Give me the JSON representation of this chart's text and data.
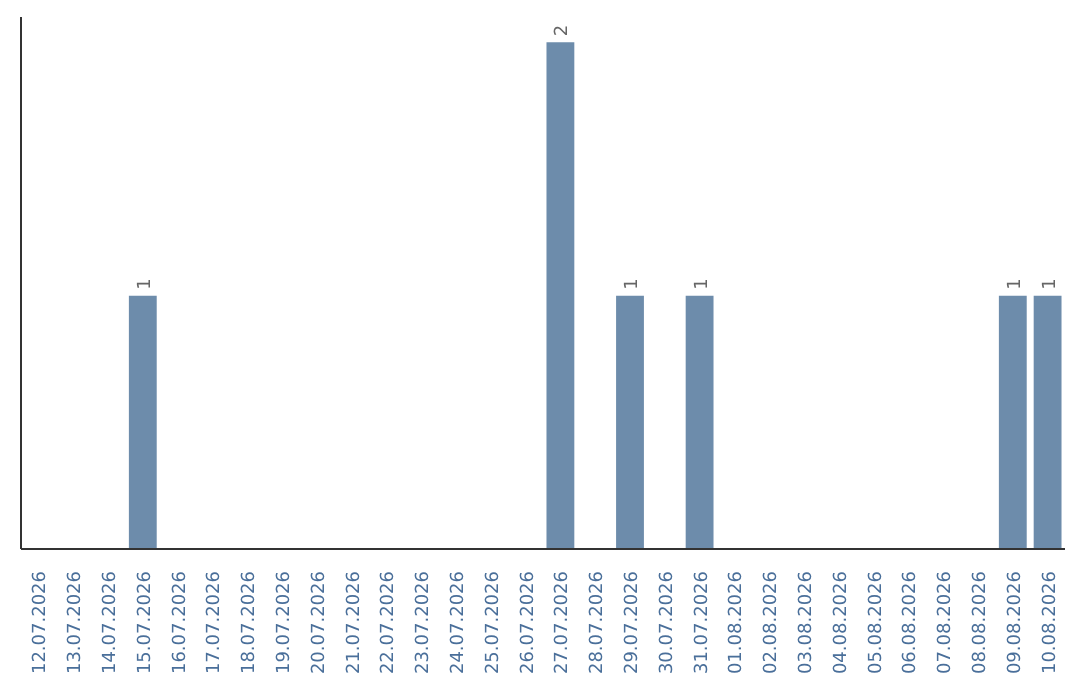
{
  "chart_data": {
    "type": "bar",
    "categories": [
      "12.07.2026",
      "13.07.2026",
      "14.07.2026",
      "15.07.2026",
      "16.07.2026",
      "17.07.2026",
      "18.07.2026",
      "19.07.2026",
      "20.07.2026",
      "21.07.2026",
      "22.07.2026",
      "23.07.2026",
      "24.07.2026",
      "25.07.2026",
      "26.07.2026",
      "27.07.2026",
      "28.07.2026",
      "29.07.2026",
      "30.07.2026",
      "31.07.2026",
      "01.08.2026",
      "02.08.2026",
      "03.08.2026",
      "04.08.2026",
      "05.08.2026",
      "06.08.2026",
      "07.08.2026",
      "08.08.2026",
      "09.08.2026",
      "10.08.2026"
    ],
    "values": [
      0,
      0,
      0,
      1,
      0,
      0,
      0,
      0,
      0,
      0,
      0,
      0,
      0,
      0,
      0,
      2,
      0,
      1,
      0,
      1,
      0,
      0,
      0,
      0,
      0,
      0,
      0,
      0,
      1,
      1
    ],
    "value_labels": [
      null,
      null,
      null,
      "1",
      null,
      null,
      null,
      null,
      null,
      null,
      null,
      null,
      null,
      null,
      null,
      "2",
      null,
      "1",
      null,
      "1",
      null,
      null,
      null,
      null,
      null,
      null,
      null,
      null,
      "1",
      "1"
    ],
    "color": "#6d8cab",
    "grid": false,
    "tick_labels": "x"
  }
}
